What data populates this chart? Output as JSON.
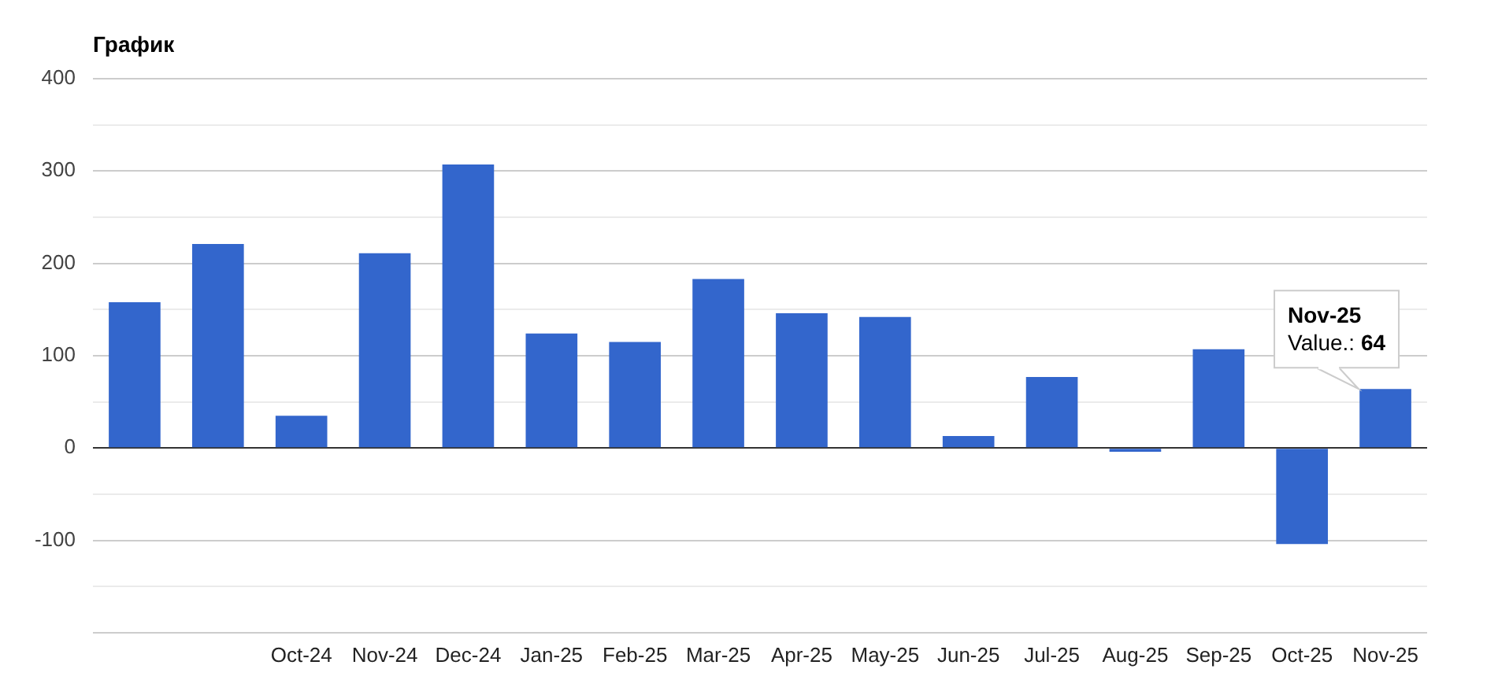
{
  "chart_data": {
    "type": "bar",
    "title": "График",
    "categories": [
      null,
      null,
      "Oct-24",
      "Nov-24",
      "Dec-24",
      "Jan-25",
      "Feb-25",
      "Mar-25",
      "Apr-25",
      "May-25",
      "Jun-25",
      "Jul-25",
      "Aug-25",
      "Sep-25",
      "Oct-25",
      "Nov-25"
    ],
    "values": [
      158,
      221,
      35,
      211,
      307,
      124,
      115,
      183,
      146,
      142,
      13,
      77,
      -4,
      107,
      -104,
      64
    ],
    "color": "#3366cc",
    "ylim": [
      -200,
      400
    ],
    "yticks": [
      {
        "value": -200,
        "label": null
      },
      {
        "value": -150,
        "label": null
      },
      -100,
      {
        "value": -50,
        "label": null
      },
      0,
      {
        "value": 50,
        "label": null
      },
      100,
      {
        "value": 150,
        "label": null
      },
      200,
      {
        "value": 250,
        "label": null
      },
      300,
      {
        "value": 350,
        "label": null
      },
      400
    ],
    "grid": "y",
    "annotations": [
      {
        "text": "Nov-25\nValue.: 64",
        "x": "Nov-25",
        "y": 64
      }
    ]
  }
}
